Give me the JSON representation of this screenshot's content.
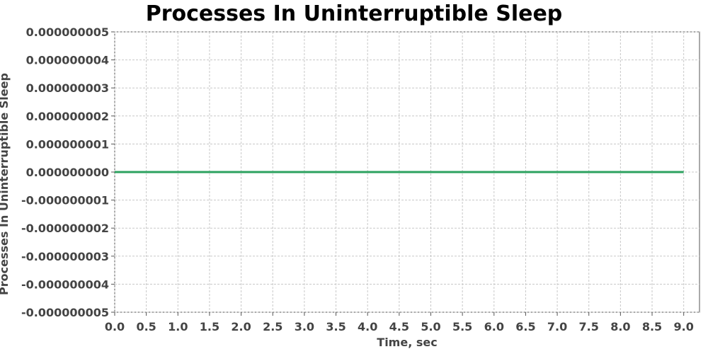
{
  "chart_data": {
    "type": "line",
    "title": "Processes In Uninterruptible Sleep",
    "xlabel": "Time, sec",
    "ylabel": "Processes In Uninterruptible Sleep",
    "xlim": [
      0.0,
      9.25
    ],
    "ylim": [
      -5e-09,
      5e-09
    ],
    "x_ticks": [
      0.0,
      0.5,
      1.0,
      1.5,
      2.0,
      2.5,
      3.0,
      3.5,
      4.0,
      4.5,
      5.0,
      5.5,
      6.0,
      6.5,
      7.0,
      7.5,
      8.0,
      8.5,
      9.0
    ],
    "x_tick_labels": [
      "0.0",
      "0.5",
      "1.0",
      "1.5",
      "2.0",
      "2.5",
      "3.0",
      "3.5",
      "4.0",
      "4.5",
      "5.0",
      "5.5",
      "6.0",
      "6.5",
      "7.0",
      "7.5",
      "8.0",
      "8.5",
      "9.0"
    ],
    "y_ticks": [
      5e-09,
      4e-09,
      3e-09,
      2e-09,
      1e-09,
      0.0,
      -1e-09,
      -2e-09,
      -3e-09,
      -4e-09,
      -5e-09
    ],
    "y_tick_labels": [
      "0.000000005",
      "0.000000004",
      "0.000000003",
      "0.000000002",
      "0.000000001",
      "0.000000000",
      "-0.000000001",
      "-0.000000002",
      "-0.000000003",
      "-0.000000004",
      "-0.000000005"
    ],
    "grid": true,
    "legend": "none",
    "series": [
      {
        "name": "Processes In Uninterruptible Sleep",
        "color": "#2ca25f",
        "x": [
          0.0,
          0.5,
          1.0,
          1.5,
          2.0,
          2.5,
          3.0,
          3.5,
          4.0,
          4.5,
          5.0,
          5.5,
          6.0,
          6.5,
          7.0,
          7.5,
          8.0,
          8.5,
          9.0
        ],
        "y": [
          0,
          0,
          0,
          0,
          0,
          0,
          0,
          0,
          0,
          0,
          0,
          0,
          0,
          0,
          0,
          0,
          0,
          0,
          0
        ]
      }
    ]
  }
}
